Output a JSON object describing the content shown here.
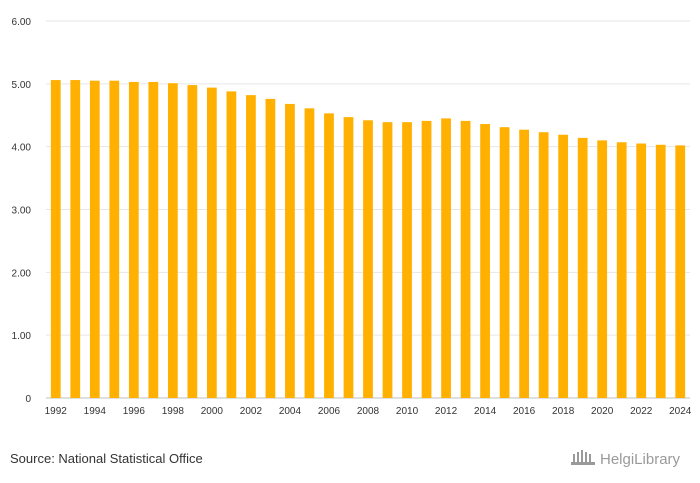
{
  "source_text": "Source: National Statistical Office",
  "brand_text": "HelgiLibrary",
  "colors": {
    "bar": "#FFB000",
    "grid": "#e6e6e6",
    "text": "#333333"
  },
  "chart_data": {
    "type": "bar",
    "title": "",
    "xlabel": "",
    "ylabel": "",
    "ylim": [
      0,
      6
    ],
    "yticks": [
      0,
      1,
      2,
      3,
      4,
      5,
      6
    ],
    "ytick_labels": [
      "0",
      "1.00",
      "2.00",
      "3.00",
      "4.00",
      "5.00",
      "6.00"
    ],
    "categories": [
      "1992",
      "1993",
      "1994",
      "1995",
      "1996",
      "1997",
      "1998",
      "1999",
      "2000",
      "2001",
      "2002",
      "2003",
      "2004",
      "2005",
      "2006",
      "2007",
      "2008",
      "2009",
      "2010",
      "2011",
      "2012",
      "2013",
      "2014",
      "2015",
      "2016",
      "2017",
      "2018",
      "2019",
      "2020",
      "2021",
      "2022",
      "2023",
      "2024"
    ],
    "xtick_labels": [
      "1992",
      "1994",
      "1996",
      "1998",
      "2000",
      "2002",
      "2004",
      "2006",
      "2008",
      "2010",
      "2012",
      "2014",
      "2016",
      "2018",
      "2020",
      "2022",
      "2024"
    ],
    "values": [
      5.06,
      5.06,
      5.05,
      5.05,
      5.03,
      5.03,
      5.01,
      4.98,
      4.94,
      4.88,
      4.82,
      4.76,
      4.68,
      4.61,
      4.53,
      4.47,
      4.42,
      4.39,
      4.39,
      4.41,
      4.45,
      4.41,
      4.36,
      4.31,
      4.27,
      4.23,
      4.19,
      4.14,
      4.1,
      4.07,
      4.05,
      4.03,
      4.02
    ]
  }
}
